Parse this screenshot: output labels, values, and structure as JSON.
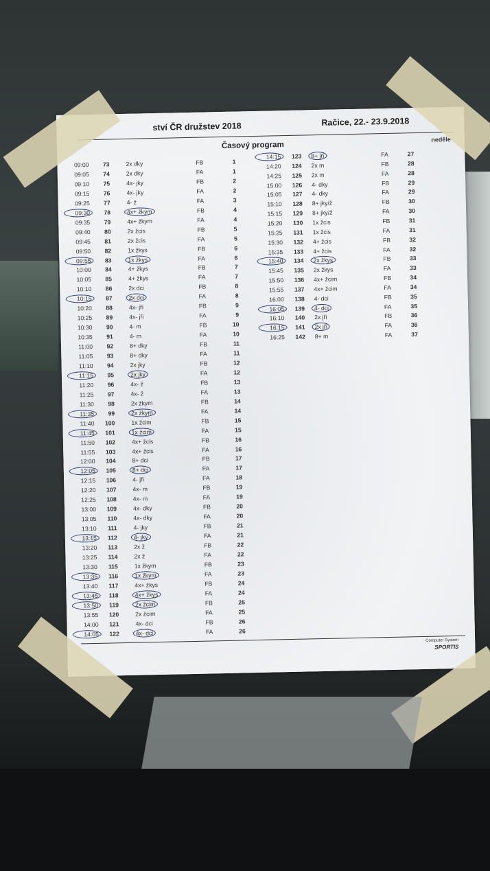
{
  "header": {
    "title": "ství ČR družstev 2018",
    "place_date": "Račice, 22.- 23.9.2018",
    "program_title": "Časový program",
    "day": "neděle"
  },
  "footer": {
    "system": "Computer System",
    "brand": "SPORTIS"
  },
  "ink_color": "#2b3a6e",
  "left_rows": [
    [
      "09:00",
      "73",
      "2x dky",
      "FB",
      "1",
      false
    ],
    [
      "09:05",
      "74",
      "2x dky",
      "FA",
      "1",
      false
    ],
    [
      "09:10",
      "75",
      "4x- jky",
      "FB",
      "2",
      false
    ],
    [
      "09:15",
      "76",
      "4x- jky",
      "FA",
      "2",
      false
    ],
    [
      "09:25",
      "77",
      "4- ž",
      "FA",
      "3",
      false
    ],
    [
      "09:30",
      "78",
      "4x+ žkym",
      "FB",
      "4",
      true
    ],
    [
      "09:35",
      "79",
      "4x+ žkym",
      "FA",
      "4",
      false
    ],
    [
      "09:40",
      "80",
      "2x žcis",
      "FB",
      "5",
      false
    ],
    [
      "09:45",
      "81",
      "2x žcis",
      "FA",
      "5",
      false
    ],
    [
      "09:50",
      "82",
      "1x žkys",
      "FB",
      "6",
      false
    ],
    [
      "09:55",
      "83",
      "1x žkys",
      "FA",
      "6",
      true
    ],
    [
      "10:00",
      "84",
      "4+ žkys",
      "FB",
      "7",
      false
    ],
    [
      "10:05",
      "85",
      "4+ žkys",
      "FA",
      "7",
      false
    ],
    [
      "10:10",
      "86",
      "2x dci",
      "FB",
      "8",
      false
    ],
    [
      "10:15",
      "87",
      "2x dci",
      "FA",
      "8",
      true
    ],
    [
      "10:20",
      "88",
      "4x- jři",
      "FB",
      "9",
      false
    ],
    [
      "10:25",
      "89",
      "4x- jři",
      "FA",
      "9",
      false
    ],
    [
      "10:30",
      "90",
      "4- m",
      "FB",
      "10",
      false
    ],
    [
      "10:35",
      "91",
      "4- m",
      "FA",
      "10",
      false
    ],
    [
      "11:00",
      "92",
      "8+ dky",
      "FB",
      "11",
      false
    ],
    [
      "11:05",
      "93",
      "8+ dky",
      "FA",
      "11",
      false
    ],
    [
      "11:10",
      "94",
      "2x jky",
      "FB",
      "12",
      false
    ],
    [
      "11:15",
      "95",
      "2x jky",
      "FA",
      "12",
      true
    ],
    [
      "11:20",
      "96",
      "4x- ž",
      "FB",
      "13",
      false
    ],
    [
      "11:25",
      "97",
      "4x- ž",
      "FA",
      "13",
      false
    ],
    [
      "11:30",
      "98",
      "2x žkym",
      "FB",
      "14",
      false
    ],
    [
      "11:35",
      "99",
      "2x žkym",
      "FA",
      "14",
      true
    ],
    [
      "11:40",
      "100",
      "1x žcim",
      "FB",
      "15",
      false
    ],
    [
      "11:45",
      "101",
      "1x žcim",
      "FA",
      "15",
      true
    ],
    [
      "11:50",
      "102",
      "4x+ žcis",
      "FB",
      "16",
      false
    ],
    [
      "11:55",
      "103",
      "4x+ žcis",
      "FA",
      "16",
      false
    ],
    [
      "12:00",
      "104",
      "8+ dci",
      "FB",
      "17",
      false
    ],
    [
      "12:05",
      "105",
      "8+ dci",
      "FA",
      "17",
      true
    ],
    [
      "12:15",
      "106",
      "4- jři",
      "FA",
      "18",
      false
    ],
    [
      "12:20",
      "107",
      "4x- m",
      "FB",
      "19",
      false
    ],
    [
      "12:25",
      "108",
      "4x- m",
      "FA",
      "19",
      false
    ],
    [
      "13:00",
      "109",
      "4x- dky",
      "FB",
      "20",
      false
    ],
    [
      "13:05",
      "110",
      "4x- dky",
      "FA",
      "20",
      false
    ],
    [
      "13:10",
      "111",
      "4- jky",
      "FB",
      "21",
      false
    ],
    [
      "13:15",
      "112",
      "4- jky",
      "FA",
      "21",
      true
    ],
    [
      "13:20",
      "113",
      "2x ž",
      "FB",
      "22",
      false
    ],
    [
      "13:25",
      "114",
      "2x ž",
      "FA",
      "22",
      false
    ],
    [
      "13:30",
      "115",
      "1x žkym",
      "FB",
      "23",
      false
    ],
    [
      "13:35",
      "116",
      "1x žkym",
      "FA",
      "23",
      true
    ],
    [
      "13:40",
      "117",
      "4x+ žkys",
      "FB",
      "24",
      false
    ],
    [
      "13:45",
      "118",
      "4x+ žkys",
      "FA",
      "24",
      true
    ],
    [
      "13:50",
      "119",
      "2x žcim",
      "FB",
      "25",
      true
    ],
    [
      "13:55",
      "120",
      "2x žcim",
      "FA",
      "25",
      false
    ],
    [
      "14:00",
      "121",
      "4x- dci",
      "FB",
      "26",
      false
    ],
    [
      "14:05",
      "122",
      "4x- dci",
      "FA",
      "26",
      true
    ]
  ],
  "right_rows": [
    [
      "14:15",
      "123",
      "8+ jři",
      "FA",
      "27",
      true
    ],
    [
      "14:20",
      "124",
      "2x m",
      "FB",
      "28",
      false
    ],
    [
      "14:25",
      "125",
      "2x m",
      "FA",
      "28",
      false
    ],
    [
      "15:00",
      "126",
      "4- dky",
      "FB",
      "29",
      false
    ],
    [
      "15:05",
      "127",
      "4- dky",
      "FA",
      "29",
      false
    ],
    [
      "15:10",
      "128",
      "8+ jky/ž",
      "FB",
      "30",
      false
    ],
    [
      "15:15",
      "129",
      "8+ jky/ž",
      "FA",
      "30",
      false
    ],
    [
      "15:20",
      "130",
      "1x žcis",
      "FB",
      "31",
      false
    ],
    [
      "15:25",
      "131",
      "1x žcis",
      "FA",
      "31",
      false
    ],
    [
      "15:30",
      "132",
      "4+ žcis",
      "FB",
      "32",
      false
    ],
    [
      "15:35",
      "133",
      "4+ žcis",
      "FA",
      "32",
      false
    ],
    [
      "15:40",
      "134",
      "2x žkys",
      "FB",
      "33",
      true
    ],
    [
      "15:45",
      "135",
      "2x žkys",
      "FA",
      "33",
      false
    ],
    [
      "15:50",
      "136",
      "4x+ žcim",
      "FB",
      "34",
      false
    ],
    [
      "15:55",
      "137",
      "4x+ žcim",
      "FA",
      "34",
      false
    ],
    [
      "16:00",
      "138",
      "4- dci",
      "FB",
      "35",
      false
    ],
    [
      "16:05",
      "139",
      "4- dci",
      "FA",
      "35",
      true
    ],
    [
      "16:10",
      "140",
      "2x jři",
      "FB",
      "36",
      false
    ],
    [
      "16:15",
      "141",
      "2x jři",
      "FA",
      "36",
      true
    ],
    [
      "16:25",
      "142",
      "8+ m",
      "FA",
      "37",
      false
    ]
  ]
}
